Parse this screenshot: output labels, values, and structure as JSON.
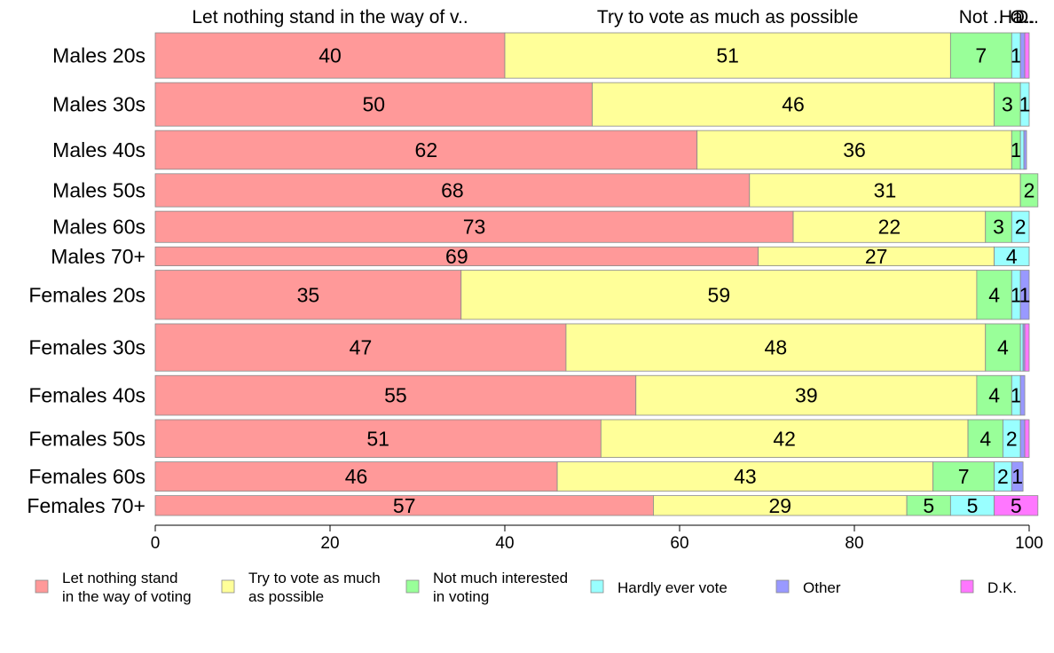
{
  "chart_data": {
    "type": "bar",
    "orientation": "horizontal",
    "stacked": true,
    "categories": [
      "Males 20s",
      "Males 30s",
      "Males 40s",
      "Males 50s",
      "Males 60s",
      "Males 70+",
      "Females 20s",
      "Females 30s",
      "Females 40s",
      "Females 50s",
      "Females 60s",
      "Females 70+"
    ],
    "relative_widths": [
      48,
      46,
      41,
      35,
      33,
      20,
      52,
      50,
      42,
      40,
      31,
      21
    ],
    "series": [
      {
        "name": "Let nothing stand in the way of voting",
        "legend_lines": [
          "Let nothing stand",
          "in the way of voting"
        ],
        "top_label": "Let nothing stand in the way of v..",
        "color": "#ff9999",
        "values": [
          40,
          50,
          62,
          68,
          73,
          69,
          35,
          47,
          55,
          51,
          46,
          57
        ]
      },
      {
        "name": "Try to vote as much as possible",
        "legend_lines": [
          "Try to vote as much",
          "as possible"
        ],
        "top_label": "Try to vote as much as possible",
        "color": "#ffff99",
        "values": [
          51,
          46,
          36,
          31,
          22,
          27,
          59,
          48,
          39,
          42,
          43,
          29
        ]
      },
      {
        "name": "Not much interested in voting",
        "legend_lines": [
          "Not much interested",
          "in voting"
        ],
        "top_label": "Not ..",
        "color": "#99ff99",
        "values": [
          7,
          3,
          1,
          2,
          3,
          0,
          4,
          4,
          4,
          4,
          7,
          5
        ]
      },
      {
        "name": "Hardly ever vote",
        "legend_lines": [
          "Hardly ever vote"
        ],
        "top_label": "Ha..",
        "color": "#99ffff",
        "values": [
          1,
          1,
          0.4,
          0,
          2,
          4,
          1,
          0.3,
          1,
          2,
          2,
          5
        ]
      },
      {
        "name": "Other",
        "legend_lines": [
          "Other"
        ],
        "top_label": "O..",
        "color": "#9999ff",
        "values": [
          0.5,
          0,
          0.3,
          0,
          0,
          0,
          1,
          0.2,
          0.5,
          0.5,
          1.3,
          0
        ]
      },
      {
        "name": "D.K.",
        "legend_lines": [
          "D.K."
        ],
        "top_label": "D..",
        "color": "#ff77ff",
        "values": [
          0.5,
          0,
          0,
          0,
          0,
          0,
          0,
          0.5,
          0,
          0.5,
          0,
          5
        ]
      }
    ],
    "labels": [
      [
        "40",
        "51",
        "7",
        "1",
        "",
        ""
      ],
      [
        "50",
        "46",
        "3",
        "1",
        "",
        ""
      ],
      [
        "62",
        "36",
        "1",
        "",
        "",
        ""
      ],
      [
        "68",
        "31",
        "2",
        "",
        "",
        ""
      ],
      [
        "73",
        "22",
        "3",
        "2",
        "",
        ""
      ],
      [
        "69",
        "27",
        "",
        "4",
        "",
        ""
      ],
      [
        "35",
        "59",
        "4",
        "1",
        "1",
        ""
      ],
      [
        "47",
        "48",
        "4",
        "",
        "",
        ""
      ],
      [
        "55",
        "39",
        "4",
        "1",
        "",
        ""
      ],
      [
        "51",
        "42",
        "4",
        "2",
        "",
        ""
      ],
      [
        "46",
        "43",
        "7",
        "2",
        "1",
        ""
      ],
      [
        "57",
        "29",
        "5",
        "5",
        "",
        "5"
      ]
    ],
    "xlim": [
      0,
      100
    ],
    "xticks": [
      0,
      20,
      40,
      60,
      80,
      100
    ],
    "grid": false,
    "legend_position": "bottom"
  }
}
